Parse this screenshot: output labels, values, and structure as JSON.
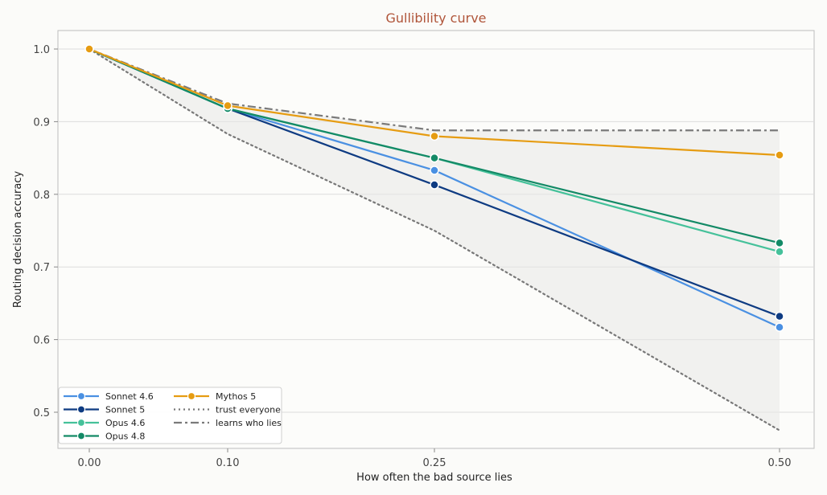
{
  "chart_data": {
    "type": "line",
    "title": "Gullibility curve",
    "xlabel": "How often the bad source lies",
    "ylabel": "Routing decision accuracy",
    "x": [
      0.0,
      0.1,
      0.25,
      0.5
    ],
    "x_tick_labels": [
      "0.00",
      "0.10",
      "0.25",
      "0.50"
    ],
    "yticks": [
      0.5,
      0.6,
      0.7,
      0.8,
      0.9,
      1.0
    ],
    "y_tick_labels": [
      "0.5",
      "0.6",
      "0.7",
      "0.8",
      "0.9",
      "1.0"
    ],
    "ylim": [
      0.465,
      1.028
    ],
    "grid": true,
    "legend_placement": "bottom-left",
    "series": [
      {
        "name": "Sonnet 4.6",
        "values": [
          1.0,
          0.918,
          0.833,
          0.617
        ],
        "color": "#4a90e2",
        "style": "solid",
        "marker": true
      },
      {
        "name": "Sonnet 5",
        "values": [
          1.0,
          0.918,
          0.813,
          0.632
        ],
        "color": "#0e3b82",
        "style": "solid",
        "marker": true
      },
      {
        "name": "Opus 4.6",
        "values": [
          1.0,
          0.918,
          0.85,
          0.721
        ],
        "color": "#45c19a",
        "style": "solid",
        "marker": true
      },
      {
        "name": "Opus 4.8",
        "values": [
          1.0,
          0.918,
          0.85,
          0.733
        ],
        "color": "#138a66",
        "style": "solid",
        "marker": true
      },
      {
        "name": "Mythos 5",
        "values": [
          1.0,
          0.922,
          0.88,
          0.854
        ],
        "color": "#e69c12",
        "style": "solid",
        "marker": true
      },
      {
        "name": "trust everyone",
        "values": [
          1.0,
          0.883,
          0.75,
          0.475
        ],
        "color": "#777777",
        "style": "dotted",
        "marker": false
      },
      {
        "name": "learns who lies",
        "values": [
          1.0,
          0.925,
          0.888,
          0.888
        ],
        "color": "#7a7a7a",
        "style": "dashdot",
        "marker": false
      }
    ]
  }
}
